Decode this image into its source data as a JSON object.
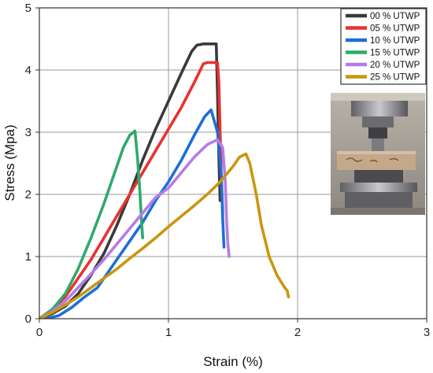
{
  "chart_data": {
    "type": "line",
    "title": "",
    "xlabel": "Strain (%)",
    "ylabel": "Stress (Mpa)",
    "xlim": [
      0,
      3
    ],
    "ylim": [
      0,
      5
    ],
    "xticks": [
      0,
      1,
      2,
      3
    ],
    "yticks": [
      0,
      1,
      2,
      3,
      4,
      5
    ],
    "grid": true,
    "legend_position": "top-right",
    "inset_photo": "tensile-test-specimen-photo",
    "series": [
      {
        "name": "00 % UTWP",
        "color": "#3a3a3a",
        "x": [
          0,
          0.1,
          0.2,
          0.3,
          0.4,
          0.5,
          0.6,
          0.7,
          0.8,
          0.9,
          1.0,
          1.1,
          1.18,
          1.22,
          1.27,
          1.3,
          1.37,
          1.38,
          1.39,
          1.4
        ],
        "y": [
          0,
          0.08,
          0.2,
          0.4,
          0.7,
          1.05,
          1.5,
          2.0,
          2.55,
          3.05,
          3.5,
          3.95,
          4.3,
          4.4,
          4.42,
          4.42,
          4.42,
          3.6,
          2.6,
          1.9
        ]
      },
      {
        "name": "05 % UTWP",
        "color": "#e8322f",
        "x": [
          0,
          0.1,
          0.2,
          0.3,
          0.4,
          0.5,
          0.6,
          0.7,
          0.8,
          0.9,
          1.0,
          1.1,
          1.2,
          1.27,
          1.3,
          1.38,
          1.39,
          1.4,
          1.41,
          1.42
        ],
        "y": [
          0,
          0.15,
          0.35,
          0.65,
          0.95,
          1.3,
          1.65,
          2.0,
          2.35,
          2.7,
          3.05,
          3.4,
          3.8,
          4.1,
          4.12,
          4.12,
          3.8,
          3.0,
          2.2,
          1.7
        ]
      },
      {
        "name": "10 % UTWP",
        "color": "#1c6fd6",
        "x": [
          0.05,
          0.15,
          0.25,
          0.35,
          0.45,
          0.5,
          0.6,
          0.7,
          0.8,
          0.9,
          1.0,
          1.1,
          1.2,
          1.28,
          1.33,
          1.38,
          1.41,
          1.42,
          1.43
        ],
        "y": [
          0,
          0.05,
          0.18,
          0.35,
          0.5,
          0.65,
          0.95,
          1.25,
          1.55,
          1.9,
          2.2,
          2.55,
          2.95,
          3.25,
          3.36,
          3.0,
          2.3,
          1.6,
          1.15
        ]
      },
      {
        "name": "15 % UTWP",
        "color": "#2faa6a",
        "x": [
          0,
          0.1,
          0.2,
          0.3,
          0.4,
          0.5,
          0.6,
          0.65,
          0.7,
          0.74,
          0.76,
          0.78,
          0.79,
          0.8
        ],
        "y": [
          0,
          0.15,
          0.4,
          0.8,
          1.3,
          1.85,
          2.45,
          2.75,
          2.95,
          3.02,
          2.6,
          2.0,
          1.6,
          1.3
        ]
      },
      {
        "name": "20 % UTWP",
        "color": "#b57ce8",
        "x": [
          0,
          0.1,
          0.2,
          0.3,
          0.4,
          0.5,
          0.6,
          0.7,
          0.8,
          0.9,
          1.0,
          1.1,
          1.2,
          1.3,
          1.38,
          1.42,
          1.44,
          1.45,
          1.46,
          1.47
        ],
        "y": [
          0,
          0.12,
          0.28,
          0.5,
          0.72,
          0.95,
          1.2,
          1.45,
          1.7,
          1.95,
          2.1,
          2.35,
          2.6,
          2.8,
          2.88,
          2.75,
          2.2,
          1.6,
          1.2,
          1.0
        ]
      },
      {
        "name": "25 % UTWP",
        "color": "#c9960f",
        "x": [
          0,
          0.1,
          0.2,
          0.3,
          0.4,
          0.5,
          0.6,
          0.7,
          0.8,
          0.9,
          1.0,
          1.1,
          1.2,
          1.3,
          1.4,
          1.5,
          1.55,
          1.6,
          1.63,
          1.68,
          1.72,
          1.78,
          1.84,
          1.9,
          1.92,
          1.93
        ],
        "y": [
          0,
          0.1,
          0.22,
          0.35,
          0.5,
          0.65,
          0.8,
          0.97,
          1.13,
          1.3,
          1.48,
          1.65,
          1.82,
          2.0,
          2.2,
          2.45,
          2.6,
          2.65,
          2.5,
          2.0,
          1.5,
          1.0,
          0.7,
          0.5,
          0.45,
          0.35
        ]
      }
    ]
  }
}
